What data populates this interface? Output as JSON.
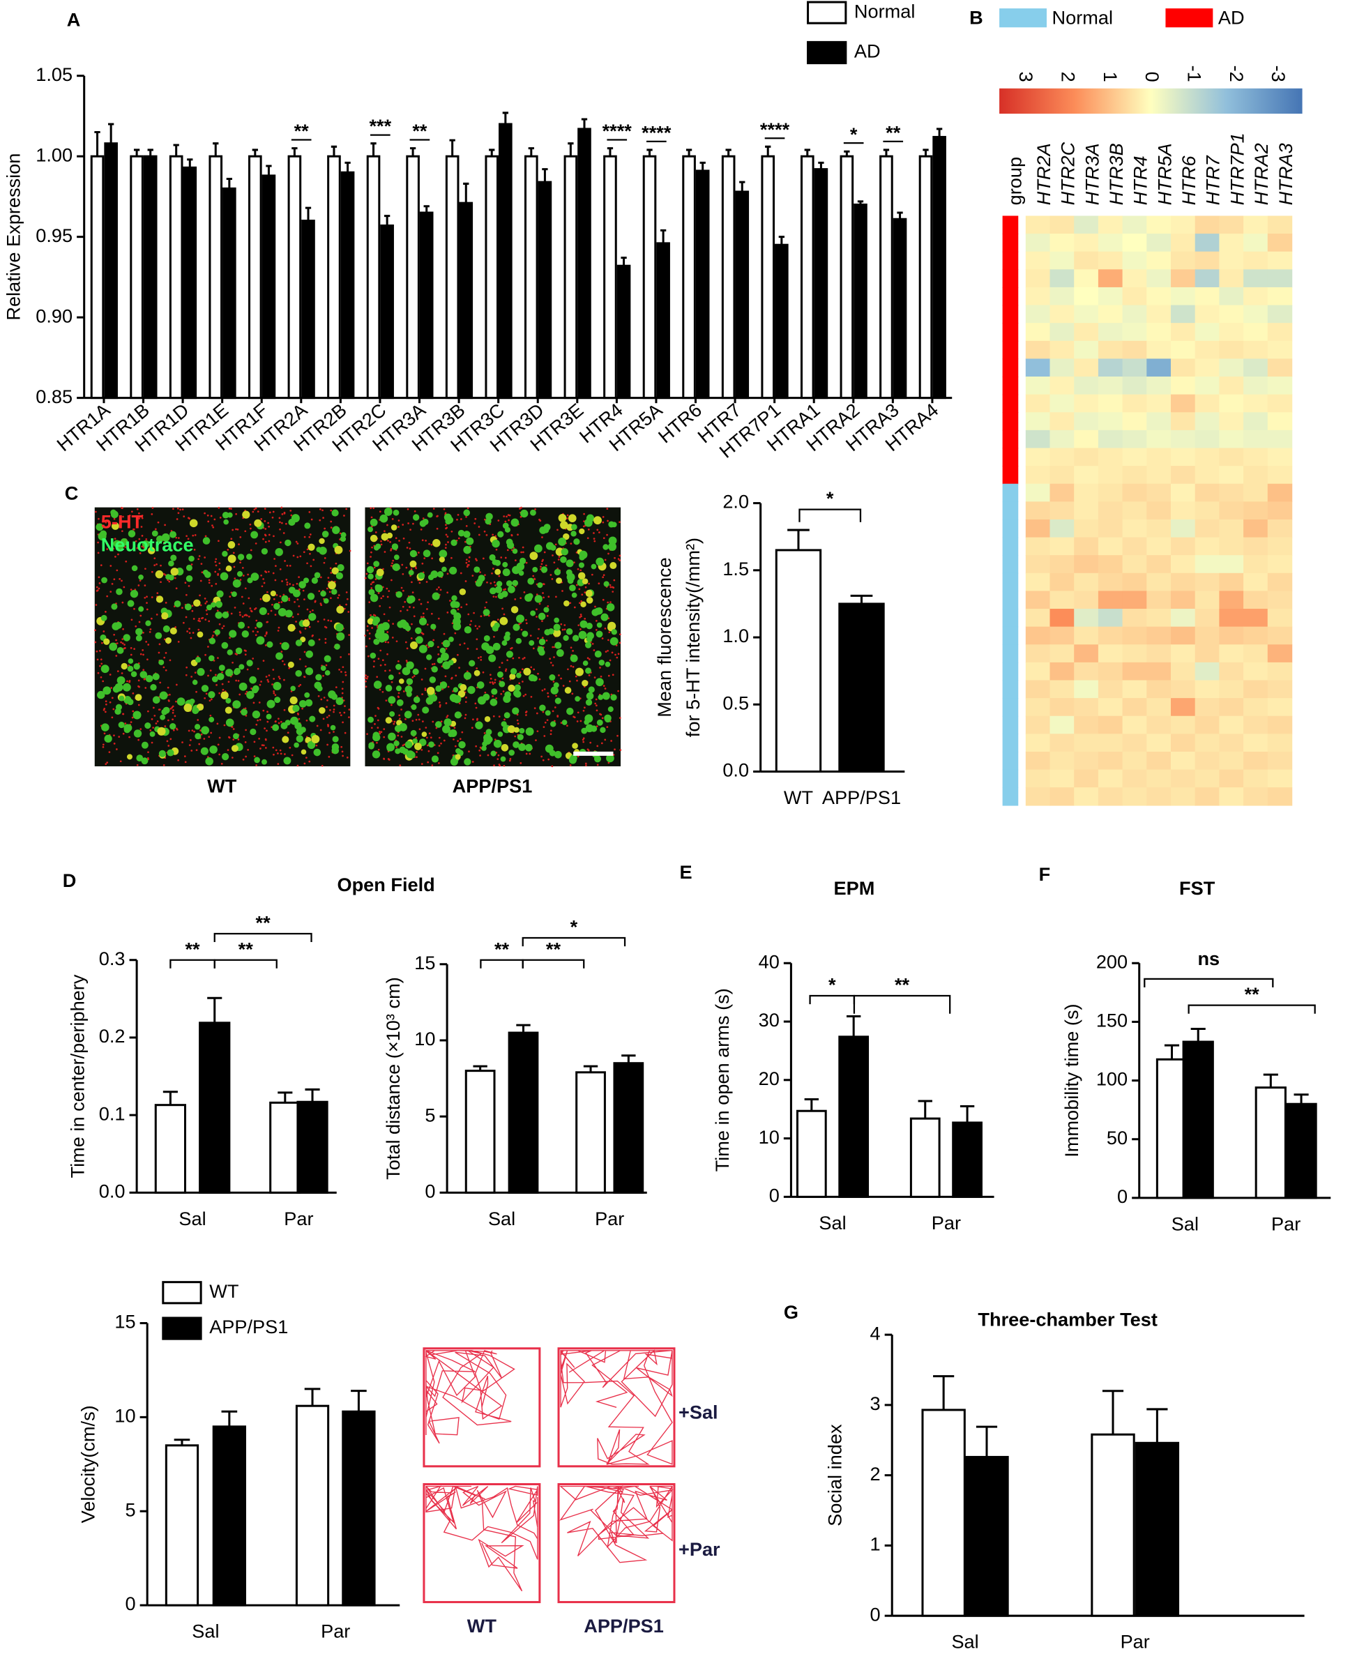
{
  "panel_labels": [
    "A",
    "B",
    "C",
    "D",
    "E",
    "F",
    "G"
  ],
  "micrographs": {
    "channels": [
      "5-HT",
      "Neuotrace"
    ],
    "labels": [
      "WT",
      "APP/PS1"
    ]
  },
  "tracks": {
    "rows": [
      "+Sal",
      "+Par"
    ],
    "columns": [
      "WT",
      "APP/PS1"
    ]
  },
  "chart_data": [
    {
      "type": "bar",
      "ylabel": "Relative Expression",
      "categories": [
        "HTR1A",
        "HTR1B",
        "HTR1D",
        "HTR1E",
        "HTR1F",
        "HTR2A",
        "HTR2B",
        "HTR2C",
        "HTR3A",
        "HTR3B",
        "HTR3C",
        "HTR3D",
        "HTR3E",
        "HTR4",
        "HTR5A",
        "HTR6",
        "HTR7",
        "HTR7P1",
        "HTRA1",
        "HTRA2",
        "HTRA3",
        "HTRA4"
      ],
      "series": [
        {
          "name": "Normal",
          "color": "#ffffff",
          "values": [
            1,
            1,
            1,
            1,
            1,
            1,
            1,
            1,
            1,
            1,
            1,
            1,
            1,
            1,
            1,
            1,
            1,
            1,
            1,
            1,
            1,
            1
          ],
          "errors": [
            0.015,
            0.004,
            0.007,
            0.008,
            0.004,
            0.005,
            0.006,
            0.008,
            0.005,
            0.01,
            0.004,
            0.005,
            0.008,
            0.005,
            0.004,
            0.004,
            0.004,
            0.006,
            0.004,
            0.003,
            0.004,
            0.004
          ]
        },
        {
          "name": "AD",
          "color": "#000000",
          "values": [
            1.008,
            1,
            0.993,
            0.98,
            0.988,
            0.96,
            0.99,
            0.957,
            0.965,
            0.971,
            1.02,
            0.984,
            1.017,
            0.932,
            0.946,
            0.991,
            0.978,
            0.945,
            0.992,
            0.97,
            0.961,
            1.012
          ],
          "errors": [
            0.012,
            0.004,
            0.005,
            0.006,
            0.006,
            0.008,
            0.006,
            0.006,
            0.004,
            0.012,
            0.007,
            0.008,
            0.006,
            0.005,
            0.008,
            0.005,
            0.006,
            0.005,
            0.004,
            0.002,
            0.004,
            0.005
          ]
        }
      ],
      "annotations": [
        null,
        null,
        null,
        null,
        null,
        "**",
        null,
        "***",
        "**",
        null,
        null,
        null,
        null,
        "****",
        "****",
        null,
        null,
        "****",
        null,
        "*",
        "**",
        null
      ],
      "ylim": [
        0.85,
        1.05
      ],
      "yticks": [
        0.85,
        {
          "value": 0.9,
          "label": "0.90"
        },
        0.95,
        {
          "value": 1,
          "label": "1.00"
        },
        1.05
      ],
      "legend": true
    },
    {
      "type": "heatmap",
      "groups": [
        {
          "name": "Normal",
          "color": "#87ceeb"
        },
        {
          "name": "AD",
          "color": "#ff0000"
        }
      ],
      "group_label": "group",
      "columns": [
        "HTR2A",
        "HTR2C",
        "HTR3A",
        "HTR3B",
        "HTR4",
        "HTR5A",
        "HTR6",
        "HTR7",
        "HTR7P1",
        "HTRA2",
        "HTRA3"
      ],
      "row_groups": [
        "AD",
        "AD",
        "AD",
        "AD",
        "AD",
        "AD",
        "AD",
        "AD",
        "AD",
        "AD",
        "AD",
        "AD",
        "AD",
        "AD",
        "AD",
        "Normal",
        "Normal",
        "Normal",
        "Normal",
        "Normal",
        "Normal",
        "Normal",
        "Normal",
        "Normal",
        "Normal",
        "Normal",
        "Normal",
        "Normal",
        "Normal",
        "Normal",
        "Normal",
        "Normal",
        "Normal"
      ],
      "values": [
        [
          0.3,
          0.4,
          -0.5,
          0.2,
          -0.3,
          0.1,
          0.2,
          0.6,
          0.5,
          0.2,
          0.4
        ],
        [
          -0.3,
          0.1,
          0.2,
          -0.2,
          0,
          -0.4,
          0.3,
          -1.3,
          0.2,
          -0.2,
          0.7
        ],
        [
          0.2,
          -0.2,
          0.4,
          0.3,
          -0.2,
          0.1,
          0.4,
          0.5,
          0.2,
          0.3,
          0.2
        ],
        [
          0.3,
          -0.8,
          0.1,
          1.3,
          0.2,
          -0.3,
          0.8,
          -1.2,
          0.3,
          -0.8,
          -0.8
        ],
        [
          0.2,
          -0.3,
          0,
          -0.2,
          0.3,
          0.1,
          -0.2,
          0.1,
          -0.4,
          0.2,
          0.1
        ],
        [
          -0.3,
          0.2,
          -0.2,
          0.1,
          -0.3,
          0.2,
          -0.8,
          0.2,
          0.1,
          -0.2,
          -0.5
        ],
        [
          0.1,
          -0.4,
          0.3,
          -0.3,
          -0.2,
          0.1,
          0.3,
          -0.2,
          0.2,
          0.1,
          0.3
        ],
        [
          0.5,
          0.3,
          -0.2,
          0.4,
          0.5,
          0.2,
          0.1,
          0.3,
          0.4,
          0.3,
          0.2
        ],
        [
          -1.8,
          -0.4,
          0.3,
          -1.2,
          -0.9,
          -2.2,
          0.4,
          0.2,
          -0.3,
          -0.6,
          0.5
        ],
        [
          -0.2,
          0.2,
          -0.4,
          -0.3,
          -0.5,
          -0.3,
          0.1,
          -0.2,
          0.3,
          -0.3,
          -0.2
        ],
        [
          0.3,
          -0.2,
          0.2,
          0.1,
          0.3,
          0.2,
          0.8,
          0.3,
          0.1,
          0.2,
          0.3
        ],
        [
          -0.2,
          0.3,
          -0.3,
          -0.2,
          0.1,
          -0.3,
          0.4,
          -0.3,
          0.2,
          -0.4,
          0.1
        ],
        [
          -0.8,
          -0.3,
          0.1,
          -0.5,
          -0.4,
          -0.2,
          -0.3,
          -0.4,
          -0.2,
          -0.3,
          -0.3
        ],
        [
          0.2,
          0.3,
          0.4,
          0.3,
          0.2,
          0.3,
          0.2,
          0.3,
          0.4,
          0.3,
          0.2
        ],
        [
          0.3,
          0.4,
          0.2,
          0.3,
          0.4,
          0.3,
          0.5,
          0.3,
          0.2,
          0.4,
          0.3
        ],
        [
          -0.2,
          0.8,
          0.3,
          0.4,
          0.6,
          0.5,
          0.2,
          0.6,
          0.5,
          0.4,
          1.0
        ],
        [
          0.6,
          0.5,
          0.3,
          0.5,
          0.4,
          0.6,
          0.3,
          0.4,
          0.6,
          0.7,
          0.8
        ],
        [
          1.0,
          -0.6,
          0.4,
          0.5,
          0.3,
          0.4,
          -0.4,
          0.5,
          0.4,
          1.0,
          0.5
        ],
        [
          0.4,
          0.3,
          0.6,
          0.3,
          0.5,
          0.3,
          0.5,
          0.3,
          0.4,
          0.5,
          0.4
        ],
        [
          0.5,
          0.6,
          0.8,
          0.7,
          0.4,
          0.6,
          0.3,
          -0.2,
          -0.2,
          0.4,
          0.3
        ],
        [
          0.3,
          0.7,
          0.4,
          0.6,
          0.7,
          0.4,
          0.6,
          0.5,
          0.7,
          0.3,
          0.6
        ],
        [
          0.8,
          0.4,
          0.5,
          1.3,
          1.3,
          0.6,
          0.9,
          0.4,
          1.3,
          0.6,
          0.5
        ],
        [
          0.4,
          1.8,
          -0.5,
          -0.9,
          0.5,
          0.4,
          -0.3,
          0.5,
          1.5,
          1.5,
          0.4
        ],
        [
          0.9,
          0.8,
          0.4,
          0.6,
          0.7,
          0.8,
          1.0,
          0.6,
          0.8,
          0.7,
          0.6
        ],
        [
          0.5,
          0.4,
          1.1,
          0.3,
          0.4,
          0.5,
          0.3,
          0.6,
          0.3,
          0.4,
          1.2
        ],
        [
          0.3,
          1.0,
          0.5,
          0.6,
          0.9,
          0.9,
          0.4,
          -0.5,
          0.5,
          0.3,
          0.4
        ],
        [
          0.6,
          0.4,
          -0.2,
          0.5,
          0.3,
          0.6,
          0.5,
          0.3,
          0.4,
          0.6,
          0.5
        ],
        [
          0.4,
          0.6,
          0.5,
          0.3,
          0.6,
          0.4,
          1.4,
          0.5,
          0.6,
          0.4,
          0.3
        ],
        [
          0.5,
          -0.2,
          0.6,
          0.7,
          0.3,
          0.5,
          0.4,
          0.6,
          0.3,
          0.5,
          0.6
        ],
        [
          0.3,
          0.5,
          0.4,
          0.4,
          0.5,
          0.3,
          0.6,
          0.4,
          0.5,
          0.3,
          0.4
        ],
        [
          0.6,
          0.4,
          0.5,
          0.6,
          0.4,
          0.6,
          0.3,
          0.5,
          0.4,
          0.6,
          0.5
        ],
        [
          0.4,
          0.3,
          0.6,
          0.3,
          0.5,
          0.4,
          0.5,
          0.4,
          0.6,
          0.4,
          0.3
        ],
        [
          0.5,
          0.6,
          0.3,
          0.5,
          0.4,
          0.5,
          0.4,
          0.6,
          0.3,
          0.5,
          0.6
        ]
      ],
      "zlim": [
        -3.6,
        3.6
      ],
      "colorbar_ticks": [
        3,
        2,
        1,
        0,
        -1,
        -2,
        -3
      ],
      "colormap": [
        "#4575b4",
        "#91bfdb",
        "#ffffbf",
        "#fc8d59",
        "#d73027"
      ]
    },
    {
      "type": "bar",
      "ylabel": [
        "Mean fluorescence",
        "for 5-HT intensity(/mm²)"
      ],
      "categories": [
        "WT",
        "APP/PS1"
      ],
      "values": [
        1.65,
        1.25
      ],
      "errors": [
        0.15,
        0.06
      ],
      "colors": [
        "#ffffff",
        "#000000"
      ],
      "ylim": [
        0,
        2
      ],
      "yticks": [
        {
          "value": 0,
          "label": "0.0"
        },
        0.5,
        {
          "value": 1,
          "label": "1.0"
        },
        1.5,
        {
          "value": 2,
          "label": "2.0"
        }
      ],
      "brackets": [
        "*"
      ]
    },
    {
      "type": "bar",
      "title": "Open Field",
      "ylabel": "Time in center/periphery",
      "categories": [
        "Sal",
        "Par"
      ],
      "series": [
        {
          "color": "#ffffff",
          "values": [
            0.113,
            0.116
          ],
          "errors": [
            0.017,
            0.013
          ]
        },
        {
          "color": "#000000",
          "values": [
            0.219,
            0.117
          ],
          "errors": [
            0.032,
            0.016
          ]
        }
      ],
      "ylim": [
        0,
        0.3
      ],
      "yticks": [
        {
          "value": 0,
          "label": "0.0"
        },
        0.1,
        0.2,
        0.3
      ],
      "brackets": [
        "**",
        "**",
        "**"
      ]
    },
    {
      "type": "bar",
      "ylabel": "Total distance (×10³ cm)",
      "categories": [
        "Sal",
        "Par"
      ],
      "series": [
        {
          "color": "#ffffff",
          "values": [
            8.0,
            7.9
          ],
          "errors": [
            0.3,
            0.4
          ]
        },
        {
          "color": "#000000",
          "values": [
            10.5,
            8.5
          ],
          "errors": [
            0.5,
            0.5
          ]
        }
      ],
      "ylim": [
        0,
        15
      ],
      "yticks": [
        0,
        5,
        10,
        15
      ],
      "brackets": [
        "**",
        "**",
        "*"
      ]
    },
    {
      "type": "bar",
      "title": "EPM",
      "ylabel": "Time in open arms (s)",
      "categories": [
        "Sal",
        "Par"
      ],
      "series": [
        {
          "color": "#ffffff",
          "values": [
            14.7,
            13.4
          ],
          "errors": [
            2.0,
            3.0
          ]
        },
        {
          "color": "#000000",
          "values": [
            27.4,
            12.7
          ],
          "errors": [
            3.5,
            2.8
          ]
        }
      ],
      "ylim": [
        0,
        40
      ],
      "yticks": [
        0,
        10,
        20,
        30,
        40
      ],
      "brackets": [
        "*",
        "**"
      ]
    },
    {
      "type": "bar",
      "title": "FST",
      "ylabel": "Immobility time (s)",
      "categories": [
        "Sal",
        "Par"
      ],
      "series": [
        {
          "color": "#ffffff",
          "values": [
            118,
            94
          ],
          "errors": [
            12,
            11
          ]
        },
        {
          "color": "#000000",
          "values": [
            133,
            80
          ],
          "errors": [
            11,
            8
          ]
        }
      ],
      "ylim": [
        0,
        200
      ],
      "yticks": [
        0,
        50,
        100,
        150,
        200
      ],
      "brackets": [
        "ns",
        "**"
      ]
    },
    {
      "type": "bar",
      "ylabel": "Velocity(cm/s)",
      "categories": [
        "Sal",
        "Par"
      ],
      "series": [
        {
          "name": "WT",
          "color": "#ffffff",
          "values": [
            8.5,
            10.6
          ],
          "errors": [
            0.3,
            0.9
          ]
        },
        {
          "name": "APP/PS1",
          "color": "#000000",
          "values": [
            9.5,
            10.3
          ],
          "errors": [
            0.8,
            1.1
          ]
        }
      ],
      "ylim": [
        0,
        15
      ],
      "yticks": [
        0,
        5,
        10,
        15
      ],
      "legend": true
    },
    {
      "type": "bar",
      "title": "Three-chamber Test",
      "ylabel": "Social index",
      "categories": [
        "Sal",
        "Par"
      ],
      "series": [
        {
          "color": "#ffffff",
          "values": [
            2.93,
            2.58
          ],
          "errors": [
            0.48,
            0.62
          ]
        },
        {
          "color": "#000000",
          "values": [
            2.26,
            2.46
          ],
          "errors": [
            0.43,
            0.48
          ]
        }
      ],
      "ylim": [
        0,
        4
      ],
      "yticks": [
        0,
        1,
        2,
        3,
        4
      ]
    }
  ]
}
